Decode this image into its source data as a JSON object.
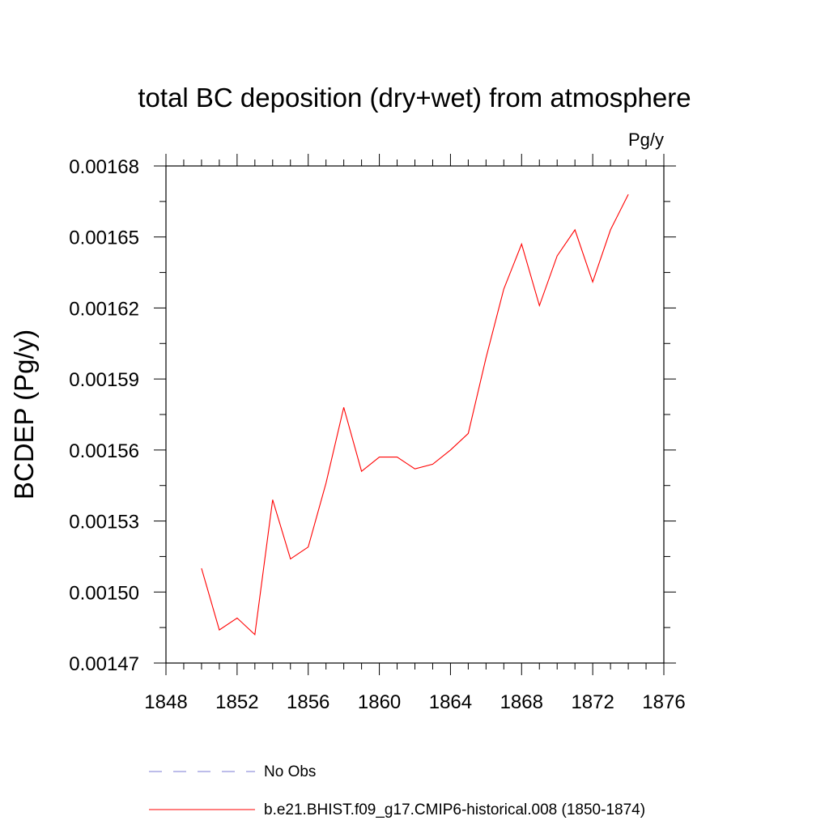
{
  "chart_data": {
    "type": "line",
    "title": "total BC deposition (dry+wet) from atmosphere",
    "units": "Pg/y",
    "ylabel": "BCDEP  (Pg/y)",
    "xlabel": "",
    "xlim": [
      1848,
      1876
    ],
    "ylim": [
      0.00147,
      0.00168
    ],
    "x_ticks": [
      "1848",
      "1852",
      "1856",
      "1860",
      "1864",
      "1868",
      "1872",
      "1876"
    ],
    "y_ticks": [
      "0.00147",
      "0.00150",
      "0.00153",
      "0.00156",
      "0.00159",
      "0.00162",
      "0.00165",
      "0.00168"
    ],
    "grid": false,
    "legend_position": "bottom",
    "series": [
      {
        "name": "No Obs",
        "color": "#7b7bd6",
        "dash": "dashed",
        "x": [],
        "y": []
      },
      {
        "name": "b.e21.BHIST.f09_g17.CMIP6-historical.008 (1850-1874)",
        "color": "#ff0000",
        "dash": "solid",
        "x": [
          1850,
          1851,
          1852,
          1853,
          1854,
          1855,
          1856,
          1857,
          1858,
          1859,
          1860,
          1861,
          1862,
          1863,
          1864,
          1865,
          1866,
          1867,
          1868,
          1869,
          1870,
          1871,
          1872,
          1873,
          1874
        ],
        "y": [
          0.00151,
          0.001484,
          0.001489,
          0.001482,
          0.001539,
          0.001514,
          0.001519,
          0.001546,
          0.001578,
          0.001551,
          0.001557,
          0.001557,
          0.001552,
          0.001554,
          0.00156,
          0.001567,
          0.001599,
          0.001628,
          0.001647,
          0.001621,
          0.001642,
          0.001653,
          0.001631,
          0.001653,
          0.001668
        ]
      }
    ]
  }
}
